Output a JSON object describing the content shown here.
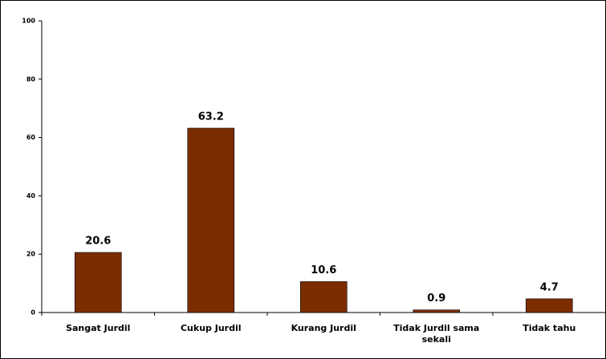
{
  "chart_data": {
    "type": "bar",
    "categories": [
      "Sangat Jurdil",
      "Cukup Jurdil",
      "Kurang Jurdil",
      "Tidak Jurdil sama sekali",
      "Tidak tahu"
    ],
    "values": [
      20.6,
      63.2,
      10.6,
      0.9,
      4.7
    ],
    "color": "#7b2d00",
    "ylim": [
      0,
      100
    ],
    "yticks": [
      0,
      20,
      40,
      60,
      80,
      100
    ],
    "grid": false
  }
}
